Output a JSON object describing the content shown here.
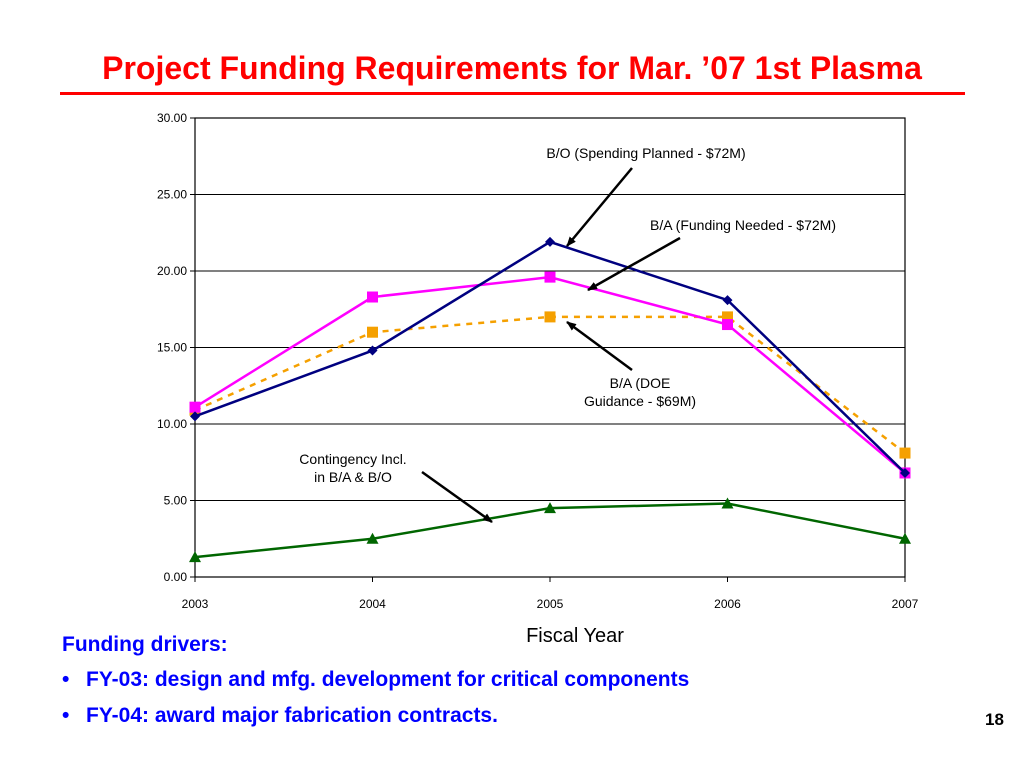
{
  "slide": {
    "title": "Project Funding Requirements for Mar. ’07 1st Plasma",
    "notes_heading": "Funding drivers:",
    "bullets": [
      "FY-03: design and mfg. development for critical components",
      "FY-04: award major fabrication contracts."
    ],
    "page_number": "18"
  },
  "colors": {
    "title": "#ff0000",
    "notes": "#0000ff",
    "bo_series": "#000080",
    "ba_needed_series": "#ff00ff",
    "ba_doe_series": "#f5a000",
    "contingency_series": "#006600"
  },
  "chart_data": {
    "type": "line",
    "xlabel": "Fiscal Year",
    "ylabel": "",
    "x": [
      2003,
      2004,
      2005,
      2006,
      2007
    ],
    "x_tick_labels": [
      "2003",
      "2004",
      "2005",
      "2006",
      "2007"
    ],
    "ylim": [
      0,
      30
    ],
    "y_ticks": [
      0,
      5,
      10,
      15,
      20,
      25,
      30
    ],
    "y_tick_labels": [
      "0.00",
      "5.00",
      "10.00",
      "15.00",
      "20.00",
      "25.00",
      "30.00"
    ],
    "grid": "horizontal",
    "series": [
      {
        "key": "bo",
        "name": "B/O (Spending Planned - $72M)",
        "values": [
          10.5,
          14.8,
          21.9,
          18.1,
          6.8
        ],
        "color": "#000080",
        "marker": "diamond",
        "dash": "solid"
      },
      {
        "key": "ba_needed",
        "name": "B/A (Funding Needed  - $72M)",
        "values": [
          11.1,
          18.3,
          19.6,
          16.5,
          6.8
        ],
        "color": "#ff00ff",
        "marker": "square",
        "dash": "solid"
      },
      {
        "key": "ba_doe",
        "name": "B/A (DOE Guidance  - $69M)",
        "values": [
          10.9,
          16.0,
          17.0,
          17.0,
          8.1
        ],
        "color": "#f5a000",
        "marker": "square",
        "dash": "dashed"
      },
      {
        "key": "contingency",
        "name": "Contingency Incl. in B/A & B/O",
        "values": [
          1.3,
          2.5,
          4.5,
          4.8,
          2.5
        ],
        "color": "#006600",
        "marker": "triangle",
        "dash": "solid"
      }
    ],
    "annotations": [
      {
        "key": "bo",
        "lines": [
          "B/O (Spending Planned - $72M)"
        ]
      },
      {
        "key": "ba_needed",
        "lines": [
          "B/A (Funding Needed  - $72M)"
        ]
      },
      {
        "key": "ba_doe",
        "lines": [
          "B/A (DOE",
          "Guidance  - $69M)"
        ]
      },
      {
        "key": "contingency",
        "lines": [
          "Contingency Incl.",
          "in B/A & B/O"
        ]
      }
    ]
  }
}
